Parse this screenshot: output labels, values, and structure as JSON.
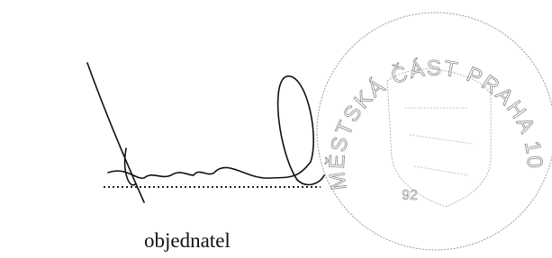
{
  "signature_block": {
    "label": "objednatel"
  },
  "stamp": {
    "text": "MĚSTSKÁ ČÁST PRAHA 10",
    "number": "92"
  }
}
